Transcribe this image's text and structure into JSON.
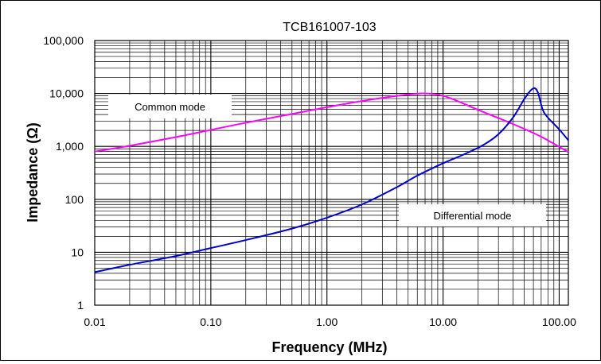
{
  "chart_data": {
    "type": "line",
    "title": "TCB161007-103",
    "xlabel": "Frequency (MHz)",
    "ylabel": "Impedance (Ω)",
    "x_scale": "log",
    "y_scale": "log",
    "xlim": [
      0.01,
      120
    ],
    "ylim": [
      1,
      100000
    ],
    "grid": true,
    "x_ticks": [
      {
        "value": 0.01,
        "label": "0.01"
      },
      {
        "value": 0.1,
        "label": "0.10"
      },
      {
        "value": 1,
        "label": "1.00"
      },
      {
        "value": 10,
        "label": "10.00"
      },
      {
        "value": 100,
        "label": "100.00"
      }
    ],
    "y_ticks": [
      {
        "value": 1,
        "label": "1"
      },
      {
        "value": 10,
        "label": "10"
      },
      {
        "value": 100,
        "label": "100"
      },
      {
        "value": 1000,
        "label": "1,000"
      },
      {
        "value": 10000,
        "label": "10,000"
      },
      {
        "value": 100000,
        "label": "100,000"
      }
    ],
    "series": [
      {
        "name": "Common mode",
        "color": "#ff00ff",
        "label_position": "upper-left",
        "x": [
          0.01,
          0.02,
          0.05,
          0.1,
          0.2,
          0.5,
          1,
          2,
          4,
          6,
          7,
          9,
          12,
          20,
          40,
          70,
          120
        ],
        "y": [
          800,
          1030,
          1500,
          2050,
          2800,
          4100,
          5500,
          7200,
          9000,
          9900,
          10000,
          9500,
          7900,
          4900,
          2650,
          1520,
          780
        ]
      },
      {
        "name": "Differential mode",
        "color": "#0000cc",
        "label_position": "lower-right",
        "x": [
          0.01,
          0.02,
          0.05,
          0.1,
          0.2,
          0.5,
          1,
          2,
          4,
          6,
          10,
          15,
          22,
          30,
          40,
          50,
          57,
          62,
          66,
          72,
          80,
          100,
          120
        ],
        "y": [
          4.2,
          5.8,
          8.5,
          12,
          17,
          28,
          45,
          80,
          170,
          280,
          480,
          700,
          1050,
          1700,
          3500,
          7800,
          11500,
          12500,
          10000,
          5000,
          3500,
          2100,
          1300
        ]
      }
    ]
  }
}
